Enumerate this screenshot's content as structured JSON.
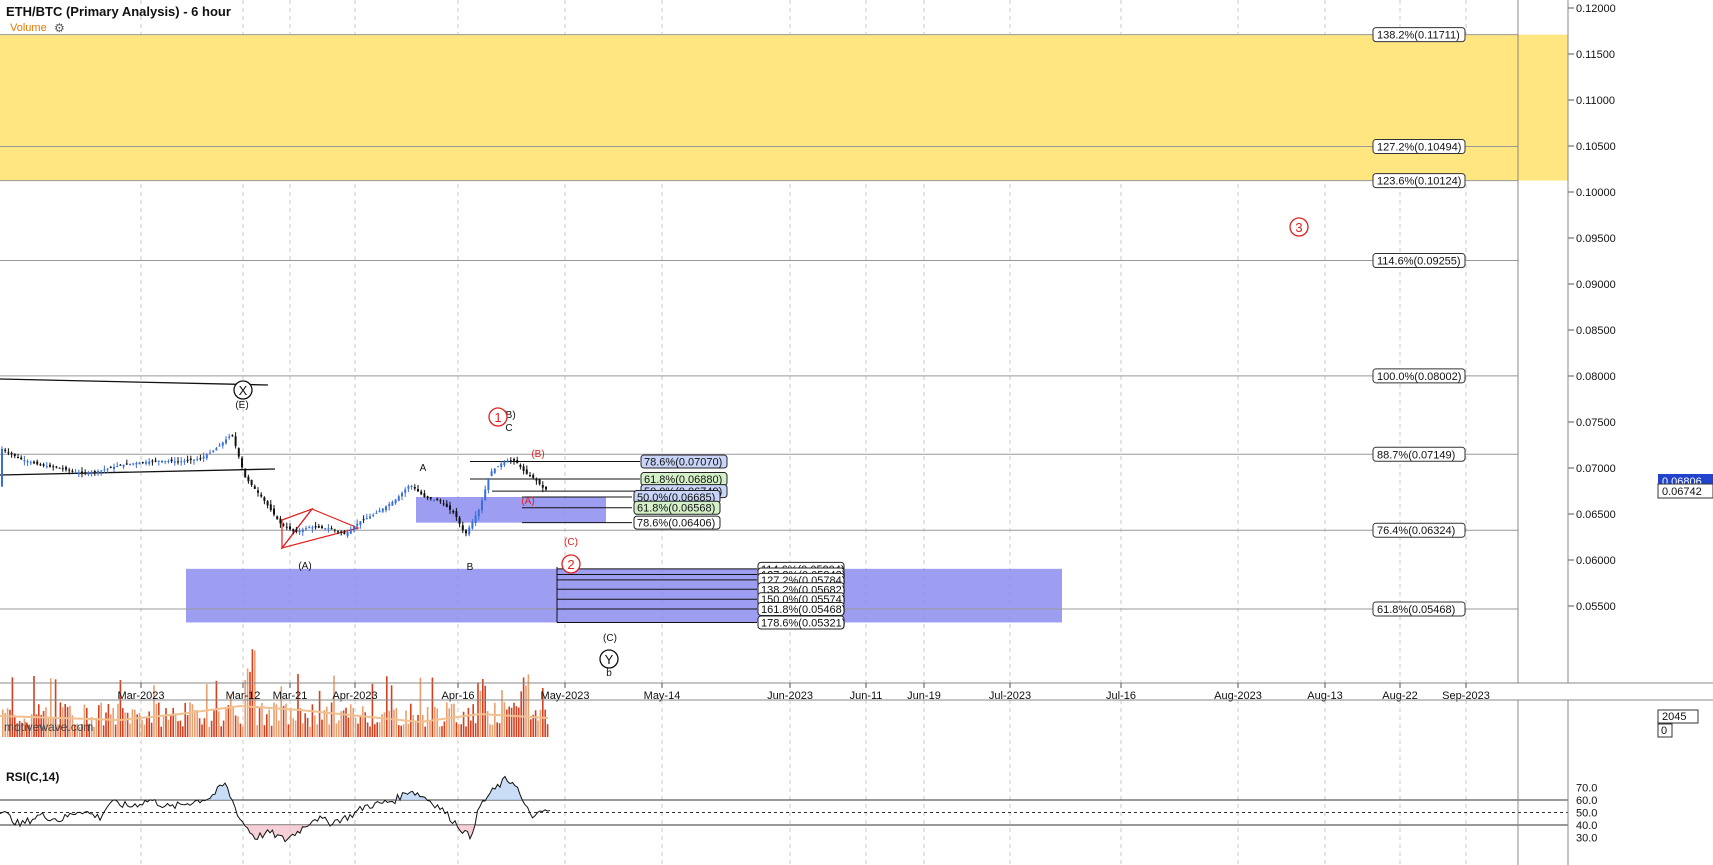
{
  "header": {
    "title": "ETH/BTC (Primary Analysis) - 6 hour",
    "volume_label": "Volume",
    "watermark": "motivewave.com",
    "rsi_label": "RSI(C,14)"
  },
  "colors": {
    "grid": "#c8c8c8",
    "fib_line": "#999999",
    "yellow_zone": "#ffe680",
    "blue_zone": "#8c8cf0",
    "candle_up": "#3a6fd8",
    "candle_down": "#111111",
    "volume_up": "#e8a070",
    "volume_down": "#d44020",
    "wave_red": "#e02020",
    "wave_black": "#111111"
  },
  "chart_data": {
    "type": "candlestick",
    "title": "ETH/BTC (Primary Analysis) - 6 hour",
    "ylim": [
      0.05,
      0.12
    ],
    "price_ticks": [
      "0.12000",
      "0.11500",
      "0.11000",
      "0.10500",
      "0.10000",
      "0.09500",
      "0.09000",
      "0.08500",
      "0.08000",
      "0.07500",
      "0.07000",
      "0.06500",
      "0.06000",
      "0.05500"
    ],
    "current_price_labels": [
      "0.06806",
      "0.06742"
    ],
    "volume_axis_labels": [
      "2045",
      "0"
    ],
    "x_tick_labels": [
      "Mar-2023",
      "Mar-12",
      "Mar-21",
      "Apr-2023",
      "Apr-16",
      "May-2023",
      "May-14",
      "Jun-2023",
      "Jun-11",
      "Jun-19",
      "Jul-2023",
      "Jul-16",
      "Aug-2023",
      "Aug-13",
      "Aug-22",
      "Sep-2023"
    ],
    "zones": [
      {
        "name": "yellow-target-zone",
        "from": 0.10124,
        "to": 0.11711
      },
      {
        "name": "blue-zone-upper",
        "from": 0.06406,
        "to": 0.06685
      },
      {
        "name": "blue-zone-lower",
        "from": 0.05321,
        "to": 0.05904
      }
    ],
    "fib_levels_right": [
      {
        "label": "138.2%(0.11711)",
        "value": 0.11711
      },
      {
        "label": "127.2%(0.10494)",
        "value": 0.10494
      },
      {
        "label": "123.6%(0.10124)",
        "value": 0.10124
      },
      {
        "label": "114.6%(0.09255)",
        "value": 0.09255
      },
      {
        "label": "100.0%(0.08002)",
        "value": 0.08002
      },
      {
        "label": "88.7%(0.07149)",
        "value": 0.07149
      },
      {
        "label": "76.4%(0.06324)",
        "value": 0.06324
      },
      {
        "label": "61.8%(0.05468)",
        "value": 0.05468
      }
    ],
    "fib_levels_upper": [
      {
        "label": "78.6%(0.07070)",
        "value": 0.0707,
        "color": "#c8d4f8"
      },
      {
        "label": "61.8%(0.06880)",
        "value": 0.0688,
        "color": "#d4f0c8"
      },
      {
        "label": "50.0%(0.06749)",
        "value": 0.06749,
        "color": "#c8d4f8"
      },
      {
        "label": "50.0%(0.06685)",
        "value": 0.06685,
        "color": "#c8d4f8"
      },
      {
        "label": "61.8%(0.06568)",
        "value": 0.06568,
        "color": "#d4f0c8"
      },
      {
        "label": "78.6%(0.06406)",
        "value": 0.06406,
        "color": "#ffffff"
      }
    ],
    "fib_levels_lower": [
      {
        "label": "114.6%(0.05904)",
        "value": 0.05904
      },
      {
        "label": "127.2%(0.05842)",
        "value": 0.05842
      },
      {
        "label": "127.2%(0.05784)",
        "value": 0.05784
      },
      {
        "label": "138.2%(0.05682)",
        "value": 0.05682
      },
      {
        "label": "150.0%(0.05574)",
        "value": 0.05574
      },
      {
        "label": "161.8%(0.05468)",
        "value": 0.05468
      },
      {
        "label": "178.6%(0.05321)",
        "value": 0.05321
      }
    ],
    "wave_labels": [
      {
        "text": "X",
        "style": "circle-black"
      },
      {
        "text": "(E)",
        "style": "black"
      },
      {
        "text": "(A)",
        "style": "black"
      },
      {
        "text": "A",
        "style": "black"
      },
      {
        "text": "B",
        "style": "black"
      },
      {
        "text": "C",
        "style": "black"
      },
      {
        "text": "(B)",
        "style": "black"
      },
      {
        "text": "1",
        "style": "circle-red"
      },
      {
        "text": "(B)",
        "style": "red"
      },
      {
        "text": "(A)",
        "style": "red"
      },
      {
        "text": "(C)",
        "style": "red"
      },
      {
        "text": "2",
        "style": "circle-red"
      },
      {
        "text": "3",
        "style": "circle-red"
      },
      {
        "text": "(C)",
        "style": "black"
      },
      {
        "text": "Y",
        "style": "circle-black"
      },
      {
        "text": "b",
        "style": "black"
      }
    ],
    "rsi": {
      "label": "RSI(C,14)",
      "ylim": [
        20,
        80
      ],
      "ticks": [
        "70.0",
        "60.0",
        "50.0",
        "40.0",
        "30.0"
      ],
      "overbought": 60,
      "oversold": 40
    }
  }
}
